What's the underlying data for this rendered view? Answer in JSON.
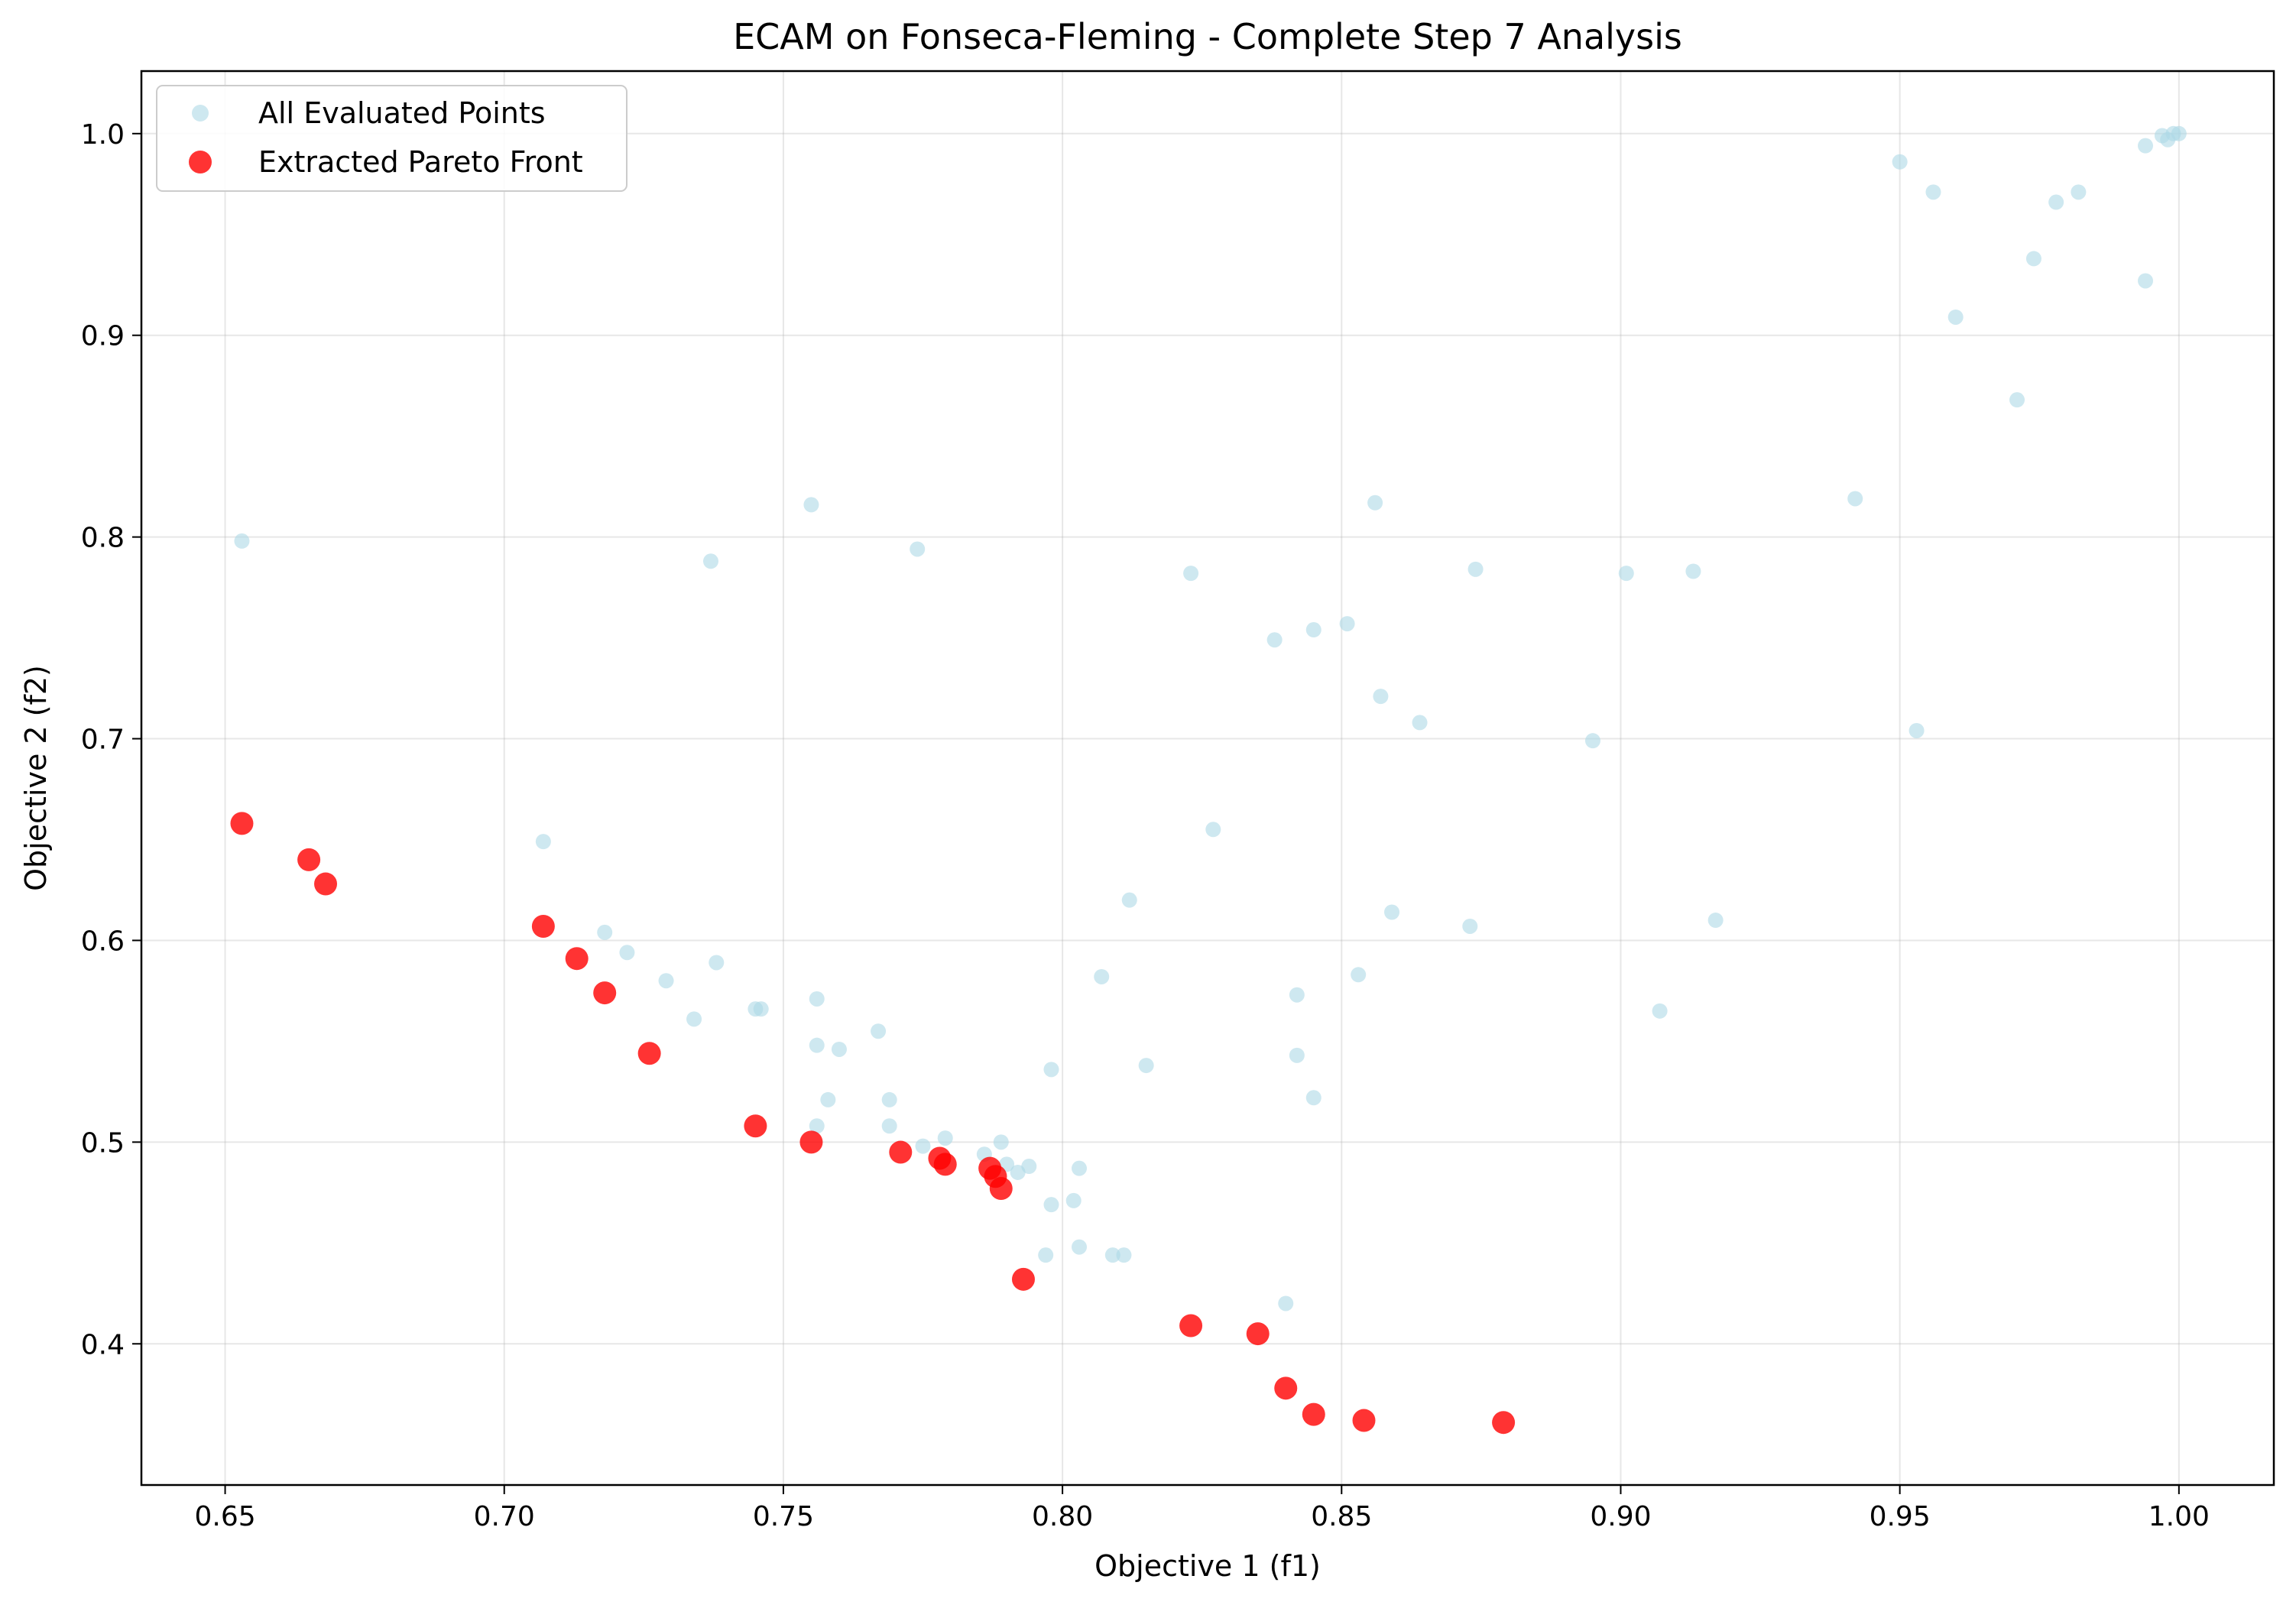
{
  "chart_data": {
    "type": "scatter",
    "title": "ECAM on Fonseca-Fleming - Complete Step 7 Analysis",
    "xlabel": "Objective 1 (f1)",
    "ylabel": "Objective 2 (f2)",
    "xlim": [
      0.635,
      1.017
    ],
    "ylim": [
      0.33,
      1.031
    ],
    "xticks": [
      0.65,
      0.7,
      0.75,
      0.8,
      0.85,
      0.9,
      0.95,
      1.0
    ],
    "xtick_labels": [
      "0.65",
      "0.70",
      "0.75",
      "0.80",
      "0.85",
      "0.90",
      "0.95",
      "1.00"
    ],
    "yticks": [
      0.4,
      0.5,
      0.6,
      0.7,
      0.8,
      0.9,
      1.0
    ],
    "ytick_labels": [
      "0.4",
      "0.5",
      "0.6",
      "0.7",
      "0.8",
      "0.9",
      "1.0"
    ],
    "grid": true,
    "legend_position": "top-left",
    "series": [
      {
        "name": "All Evaluated Points",
        "color": "#add8e6",
        "points": [
          [
            0.653,
            0.798
          ],
          [
            0.707,
            0.649
          ],
          [
            0.718,
            0.604
          ],
          [
            0.722,
            0.594
          ],
          [
            0.729,
            0.58
          ],
          [
            0.734,
            0.561
          ],
          [
            0.737,
            0.788
          ],
          [
            0.738,
            0.589
          ],
          [
            0.745,
            0.566
          ],
          [
            0.746,
            0.566
          ],
          [
            0.755,
            0.816
          ],
          [
            0.756,
            0.571
          ],
          [
            0.756,
            0.548
          ],
          [
            0.756,
            0.508
          ],
          [
            0.758,
            0.521
          ],
          [
            0.76,
            0.546
          ],
          [
            0.767,
            0.555
          ],
          [
            0.769,
            0.508
          ],
          [
            0.769,
            0.521
          ],
          [
            0.774,
            0.794
          ],
          [
            0.775,
            0.498
          ],
          [
            0.779,
            0.502
          ],
          [
            0.786,
            0.494
          ],
          [
            0.789,
            0.5
          ],
          [
            0.79,
            0.489
          ],
          [
            0.792,
            0.485
          ],
          [
            0.794,
            0.488
          ],
          [
            0.797,
            0.444
          ],
          [
            0.798,
            0.536
          ],
          [
            0.798,
            0.469
          ],
          [
            0.802,
            0.471
          ],
          [
            0.803,
            0.487
          ],
          [
            0.803,
            0.448
          ],
          [
            0.807,
            0.582
          ],
          [
            0.809,
            0.444
          ],
          [
            0.811,
            0.444
          ],
          [
            0.812,
            0.62
          ],
          [
            0.815,
            0.538
          ],
          [
            0.823,
            0.782
          ],
          [
            0.827,
            0.655
          ],
          [
            0.838,
            0.749
          ],
          [
            0.84,
            0.42
          ],
          [
            0.842,
            0.573
          ],
          [
            0.842,
            0.543
          ],
          [
            0.845,
            0.754
          ],
          [
            0.845,
            0.522
          ],
          [
            0.851,
            0.757
          ],
          [
            0.853,
            0.583
          ],
          [
            0.856,
            0.817
          ],
          [
            0.857,
            0.721
          ],
          [
            0.859,
            0.614
          ],
          [
            0.864,
            0.708
          ],
          [
            0.873,
            0.607
          ],
          [
            0.874,
            0.784
          ],
          [
            0.895,
            0.699
          ],
          [
            0.901,
            0.782
          ],
          [
            0.907,
            0.565
          ],
          [
            0.913,
            0.783
          ],
          [
            0.917,
            0.61
          ],
          [
            0.942,
            0.819
          ],
          [
            0.95,
            0.986
          ],
          [
            0.953,
            0.704
          ],
          [
            0.956,
            0.971
          ],
          [
            0.96,
            0.909
          ],
          [
            0.971,
            0.868
          ],
          [
            0.974,
            0.938
          ],
          [
            0.978,
            0.966
          ],
          [
            0.982,
            0.971
          ],
          [
            0.994,
            0.994
          ],
          [
            0.994,
            0.927
          ],
          [
            0.997,
            0.999
          ],
          [
            0.998,
            0.997
          ],
          [
            0.999,
            1.0
          ],
          [
            1.0,
            1.0
          ]
        ]
      },
      {
        "name": "Extracted Pareto Front",
        "color": "#ff0000",
        "points": [
          [
            0.653,
            0.658
          ],
          [
            0.665,
            0.64
          ],
          [
            0.668,
            0.628
          ],
          [
            0.707,
            0.607
          ],
          [
            0.713,
            0.591
          ],
          [
            0.718,
            0.574
          ],
          [
            0.726,
            0.544
          ],
          [
            0.745,
            0.508
          ],
          [
            0.755,
            0.5
          ],
          [
            0.771,
            0.495
          ],
          [
            0.778,
            0.492
          ],
          [
            0.779,
            0.489
          ],
          [
            0.787,
            0.487
          ],
          [
            0.788,
            0.483
          ],
          [
            0.789,
            0.477
          ],
          [
            0.793,
            0.432
          ],
          [
            0.823,
            0.409
          ],
          [
            0.835,
            0.405
          ],
          [
            0.84,
            0.378
          ],
          [
            0.845,
            0.365
          ],
          [
            0.854,
            0.362
          ],
          [
            0.879,
            0.361
          ]
        ]
      }
    ]
  }
}
